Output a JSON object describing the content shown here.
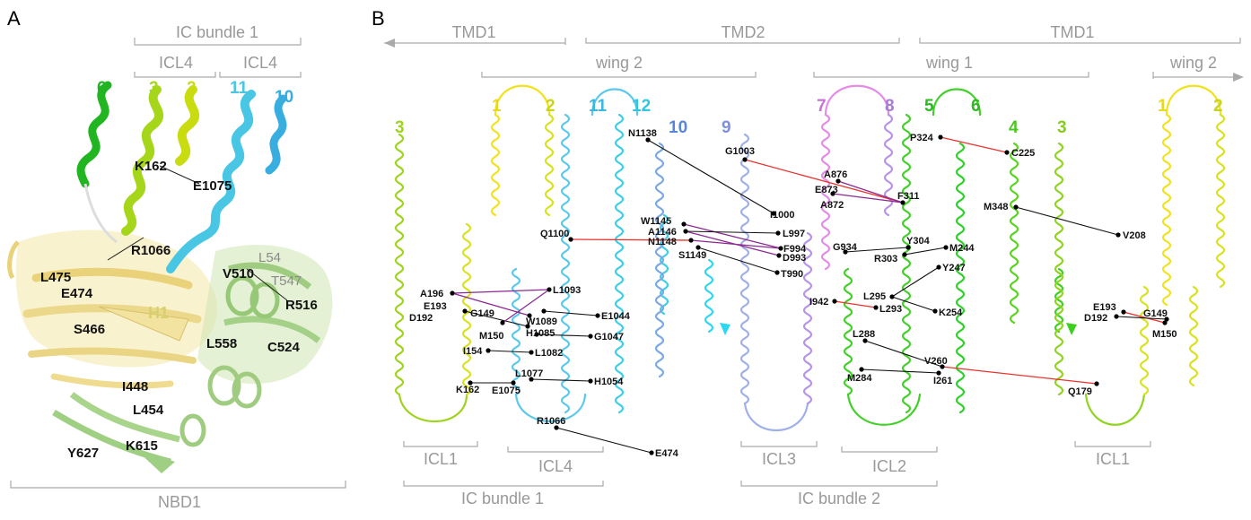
{
  "panelA": {
    "letter": "A",
    "brackets": {
      "ic_bundle_1": "IC bundle 1",
      "icl4_left": "ICL4",
      "icl4_right": "ICL4",
      "nbd1": "NBD1"
    },
    "helix_numbers": [
      "6",
      "3",
      "2",
      "11",
      "10"
    ],
    "residues": {
      "k162": "K162",
      "e1075": "E1075",
      "r1066": "R1066",
      "l475": "L475",
      "e474": "E474",
      "h1": "H1",
      "s466": "S466",
      "v510": "V510",
      "l54": "L54",
      "t547": "T547",
      "r516": "R516",
      "l558": "L558",
      "c524": "C524",
      "i448": "I448",
      "l454": "L454",
      "y627": "Y627",
      "k615": "K615"
    },
    "colors": {
      "helix6": "#22b522",
      "helix3": "#a6d61a",
      "helix2": "#c8dc10",
      "helix11": "#48c6e4",
      "helix10": "#38aee0",
      "nbd_yellow": "#f2e29a",
      "nbd_green": "#a9d48a"
    }
  },
  "panelB": {
    "letter": "B",
    "top_brackets": {
      "tmd1_left": "TMD1",
      "tmd2": "TMD2",
      "tmd1_right": "TMD1",
      "wing2_left": "wing 2",
      "wing1": "wing 1",
      "wing2_right": "wing 2"
    },
    "bottom_brackets": {
      "icl1_left": "ICL1",
      "icl4": "ICL4",
      "icl3": "ICL3",
      "icl2": "ICL2",
      "icl1_right": "ICL1",
      "ic_bundle_1": "IC bundle 1",
      "ic_bundle_2": "IC bundle 2"
    },
    "helix_numbers": {
      "h3_left": "3",
      "h1": "1",
      "h2": "2",
      "h11": "11",
      "h12": "12",
      "h10": "10",
      "h9": "9",
      "h7": "7",
      "h8": "8",
      "h5": "5",
      "h6": "6",
      "h4": "4",
      "h3_right": "3",
      "h1_right": "1",
      "h2_right": "2"
    },
    "residues": {
      "n1138": "N1138",
      "g1003": "G1003",
      "i1000": "I1000",
      "w1145": "W1145",
      "a1146": "A1146",
      "n1148": "N1148",
      "s1149": "S1149",
      "l997": "L997",
      "f994": "F994",
      "d993": "D993",
      "t990": "T990",
      "q1100": "Q1100",
      "a876": "A876",
      "e873": "E873",
      "a872": "A872",
      "f311": "F311",
      "p324": "P324",
      "c225": "C225",
      "m348": "M348",
      "v208": "V208",
      "g934": "G934",
      "y304": "Y304",
      "r303": "R303",
      "m244": "M244",
      "y247": "Y247",
      "l295": "L295",
      "i942": "I942",
      "l293": "L293",
      "k254": "K254",
      "l288": "L288",
      "v260": "V260",
      "m284": "M284",
      "i261": "I261",
      "q179": "Q179",
      "e193_r": "E193",
      "d192_r": "D192",
      "g149_r": "G149",
      "m150_r": "M150",
      "a196": "A196",
      "e193_l": "E193",
      "d192_l": "D192",
      "g149_l": "G149",
      "m150_l": "M150",
      "l1093": "L1093",
      "w1089": "W1089",
      "e1044": "E1044",
      "h1085": "H1085",
      "g1047": "G1047",
      "i154": "I154",
      "l1082": "L1082",
      "l1077": "L1077",
      "k162": "K162",
      "e1075": "E1075",
      "h1054": "H1054",
      "r1066": "R1066",
      "e474": "E474"
    },
    "colors": {
      "link_default": "#111111",
      "link_red": "#e8332f",
      "link_purple": "#8a2a91",
      "tm3": "#9fd41e",
      "tm1": "#f2e21e",
      "tm2": "#d9e21e",
      "tm11": "#5cc8ec",
      "tm12": "#3ccfe6",
      "tm10": "#7aa9e4",
      "tm9": "#9fb0e8",
      "tm7": "#e48ce6",
      "tm8": "#b793ea",
      "tm5": "#44d02a",
      "tm6": "#2ed12a",
      "tm4": "#58d41e",
      "tm3b": "#8fd41e"
    }
  }
}
